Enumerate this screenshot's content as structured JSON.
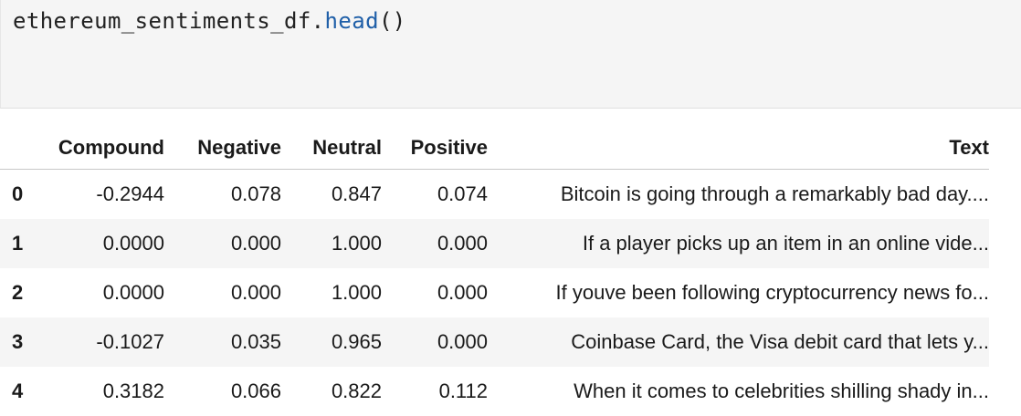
{
  "cell": {
    "code_object": "ethereum_sentiments_df.",
    "code_method": "head",
    "code_parens": "()"
  },
  "table": {
    "columns": [
      "",
      "Compound",
      "Negative",
      "Neutral",
      "Positive",
      "Text"
    ],
    "rows": [
      {
        "index": "0",
        "compound": "-0.2944",
        "negative": "0.078",
        "neutral": "0.847",
        "positive": "0.074",
        "text": "Bitcoin is going through a remarkably bad day...."
      },
      {
        "index": "1",
        "compound": "0.0000",
        "negative": "0.000",
        "neutral": "1.000",
        "positive": "0.000",
        "text": "If a player picks up an item in an online vide..."
      },
      {
        "index": "2",
        "compound": "0.0000",
        "negative": "0.000",
        "neutral": "1.000",
        "positive": "0.000",
        "text": "If youve been following cryptocurrency news fo..."
      },
      {
        "index": "3",
        "compound": "-0.1027",
        "negative": "0.035",
        "neutral": "0.965",
        "positive": "0.000",
        "text": "Coinbase Card, the Visa debit card that lets y..."
      },
      {
        "index": "4",
        "compound": "0.3182",
        "negative": "0.066",
        "neutral": "0.822",
        "positive": "0.112",
        "text": "When it comes to celebrities shilling shady in..."
      }
    ]
  },
  "colors": {
    "code_function": "#1f5fa8",
    "cell_background": "#f5f5f5",
    "row_stripe": "#f5f5f5"
  }
}
